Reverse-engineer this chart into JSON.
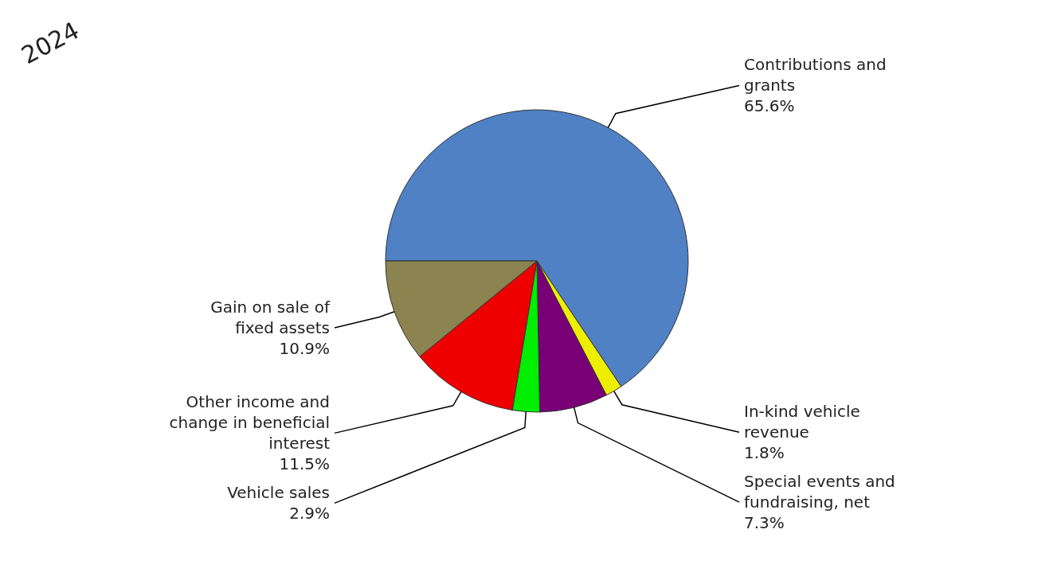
{
  "chart_data": {
    "type": "pie",
    "title": "2024",
    "categories": [
      "Contributions and grants",
      "In-kind vehicle revenue",
      "Special events and fundraising, net",
      "Vehicle sales",
      "Other income and change in beneficial interest",
      "Gain on sale of fixed assets"
    ],
    "values": [
      65.6,
      1.8,
      7.3,
      2.9,
      11.5,
      10.9
    ],
    "colors": [
      "#4f81c4",
      "#eeee00",
      "#7a0078",
      "#00ee00",
      "#ee0000",
      "#8b8350"
    ],
    "value_labels": [
      "65.6%",
      "1.8%",
      "7.3%",
      "2.9%",
      "11.5%",
      "10.9%"
    ]
  }
}
